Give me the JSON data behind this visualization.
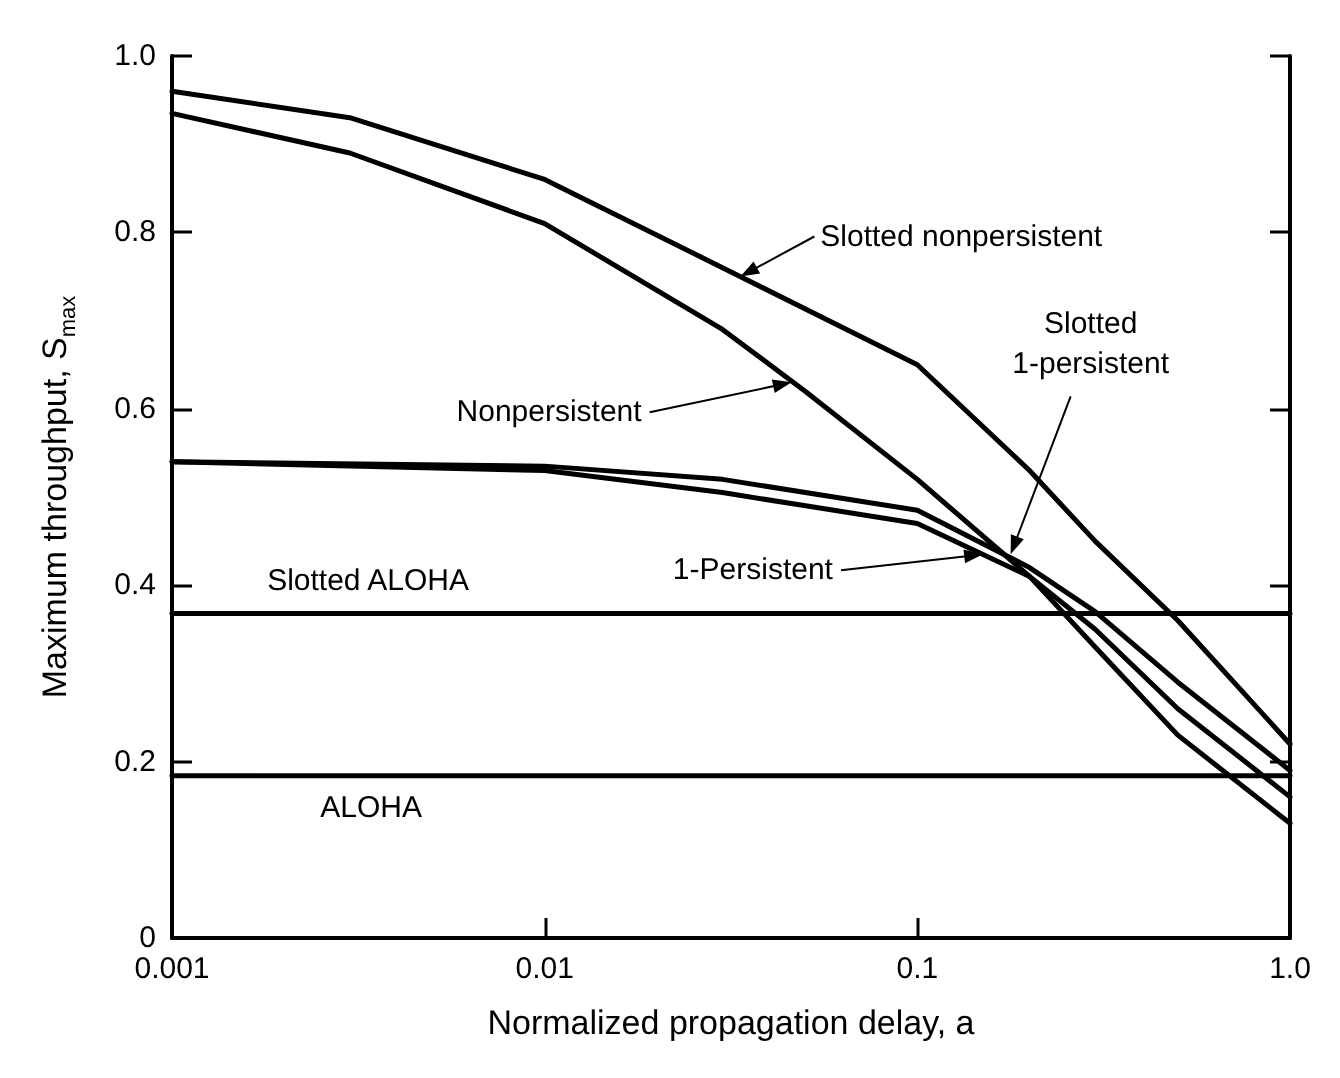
{
  "chart_data": {
    "type": "line",
    "xlabel": "Normalized propagation delay, a",
    "ylabel": "Maximum throughput, S$_{max}$",
    "log": "x",
    "grid": false,
    "marker": "none",
    "line_style": "solid",
    "xlim": [
      0.001,
      1
    ],
    "xticks": [
      0.001,
      0.01,
      0.1,
      {
        "value": 1,
        "label": "1.0"
      }
    ],
    "ylim": [
      0,
      1
    ],
    "yticks": [
      0,
      0.2,
      0.4,
      0.6,
      0.8,
      {
        "value": 1,
        "label": "1.0"
      }
    ],
    "series": [
      {
        "color": "#000000",
        "x": [
          0.001,
          0.003,
          0.01,
          0.03,
          0.1,
          0.2,
          0.3,
          0.5,
          1
        ],
        "values": [
          0.96,
          0.93,
          0.86,
          0.76,
          0.65,
          0.53,
          0.45,
          0.36,
          0.22
        ]
      },
      {
        "color": "#000000",
        "x": [
          0.001,
          0.003,
          0.01,
          0.03,
          0.05,
          0.1,
          0.2,
          0.3,
          0.5,
          1
        ],
        "values": [
          0.935,
          0.89,
          0.81,
          0.69,
          0.62,
          0.52,
          0.41,
          0.33,
          0.23,
          0.13
        ]
      },
      {
        "color": "#000000",
        "x": [
          0.001,
          0.01,
          0.03,
          0.1,
          0.2,
          0.3,
          0.5,
          1
        ],
        "values": [
          0.54,
          0.535,
          0.52,
          0.485,
          0.42,
          0.37,
          0.29,
          0.19
        ]
      },
      {
        "color": "#000000",
        "x": [
          0.001,
          0.01,
          0.03,
          0.1,
          0.2,
          0.3,
          0.5,
          1
        ],
        "values": [
          0.54,
          0.53,
          0.505,
          0.47,
          0.41,
          0.35,
          0.26,
          0.16
        ]
      },
      {
        "color": "#000000",
        "x": [
          0.001,
          1
        ],
        "values": [
          0.368,
          0.368
        ]
      },
      {
        "color": "#000000",
        "x": [
          0.001,
          1
        ],
        "values": [
          0.184,
          0.184
        ]
      }
    ],
    "annotations": [
      {
        "text": "Slotted nonpersistent",
        "x": 0.0335,
        "y": 0.75
      },
      {
        "text": "Nonpersistent",
        "x": 0.046,
        "y": 0.63
      },
      {
        "text": "Slotted\n1-persistent",
        "x": 0.178,
        "y": 0.435
      },
      {
        "text": "1-Persistent",
        "x": 0.15,
        "y": 0.435
      },
      {
        "text": "Slotted ALOHA",
        "x": 0.0018,
        "y": 0.368
      },
      {
        "text": "ALOHA",
        "x": 0.0025,
        "y": 0.184
      }
    ]
  }
}
